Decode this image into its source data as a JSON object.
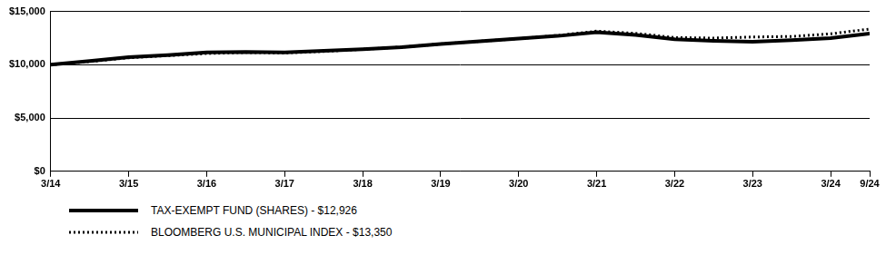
{
  "chart_data": {
    "type": "line",
    "categories": [
      "3/14",
      null,
      "3/15",
      null,
      "3/16",
      null,
      "3/17",
      null,
      "3/18",
      null,
      "3/19",
      null,
      "3/20",
      null,
      "3/21",
      null,
      "3/22",
      null,
      "3/23",
      null,
      "3/24",
      "9/24"
    ],
    "series": [
      {
        "name": "TAX-EXEMPT FUND (SHARES) - $12,926",
        "color": "#000000",
        "line_style": "solid",
        "values": [
          10000,
          10350,
          10700,
          10900,
          11150,
          11200,
          11150,
          11300,
          11450,
          11650,
          11950,
          12200,
          12450,
          12700,
          13050,
          12800,
          12400,
          12250,
          12150,
          12300,
          12500,
          12926
        ]
      },
      {
        "name": "BLOOMBERG U.S. MUNICIPAL INDEX - $13,350",
        "color": "#000000",
        "line_style": "dotted",
        "values": [
          10000,
          10300,
          10650,
          10850,
          11050,
          11150,
          11100,
          11250,
          11450,
          11650,
          11950,
          12200,
          12450,
          12750,
          13150,
          12950,
          12550,
          12500,
          12600,
          12650,
          12900,
          13350
        ]
      }
    ],
    "ylim": [
      0,
      15000
    ],
    "yticks": [
      {
        "value": 0,
        "label": "$0"
      },
      {
        "value": 5000,
        "label": "$5,000"
      },
      {
        "value": 10000,
        "label": "$10,000"
      },
      {
        "value": 15000,
        "label": "$15,000"
      }
    ],
    "grid": true,
    "legend": "bottom-left"
  }
}
